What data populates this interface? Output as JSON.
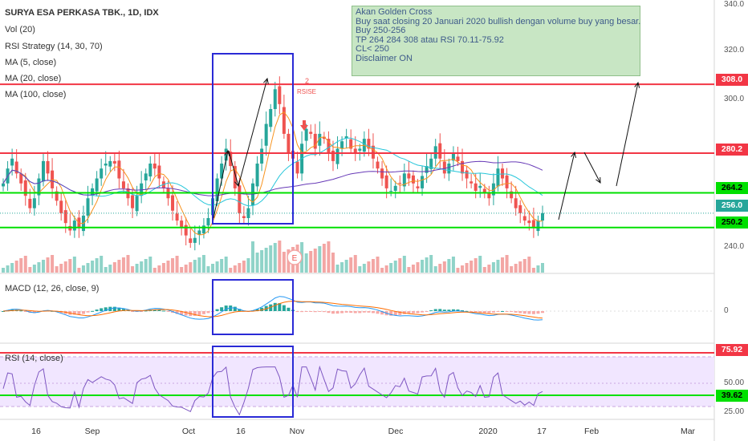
{
  "header": {
    "title": "SURYA ESA PERKASA TBK., 1D, IDX",
    "indicators": [
      "Vol (20)",
      "RSI Strategy (14, 30, 70)",
      "MA (5, close)",
      "MA (20, close)",
      "MA (100, close)"
    ]
  },
  "note": {
    "lines": [
      "Akan Golden Cross",
      "Buy saat closing 20 Januari 2020 bullish dengan volume buy yang besar.",
      "Buy 250-256",
      "TP 264 284 308 atau RSI 70.11-75.92",
      "CL< 250",
      "Disclaimer ON"
    ]
  },
  "price_axis": {
    "ticks": [
      "340.0",
      "320.0",
      "300.0",
      "240.0"
    ]
  },
  "price_badges": [
    {
      "label": "308.0",
      "color": "#f23645"
    },
    {
      "label": "280.2",
      "color": "#f23645"
    },
    {
      "label": "264.2",
      "color": "#00e000"
    },
    {
      "label": "256.0",
      "color": "#26a69a"
    },
    {
      "label": "250.2",
      "color": "#00e000"
    }
  ],
  "macd": {
    "label": "MACD (12, 26, close, 9)",
    "zero_tick": "0"
  },
  "rsi": {
    "label": "RSI (14, close)",
    "ticks": [
      "50.00",
      "25.00"
    ],
    "badges": [
      {
        "label": "75.92",
        "color": "#f23645"
      },
      {
        "label": "39.62",
        "color": "#00e000"
      }
    ]
  },
  "time_axis": {
    "labels": [
      "16",
      "Sep",
      "Oct",
      "16",
      "Nov",
      "Dec",
      "2020",
      "17",
      "Feb",
      "Mar"
    ]
  },
  "markers": {
    "earnings": "E",
    "signal_count": "2",
    "signal_text": "RSISE"
  },
  "chart_data": {
    "type": "candlestick",
    "title": "SURYA ESA PERKASA TBK., 1D, IDX",
    "ylim": [
      232,
      342
    ],
    "horizontal_levels": [
      {
        "value": 308,
        "color": "#f23645"
      },
      {
        "value": 280.2,
        "color": "#f23645"
      },
      {
        "value": 264.2,
        "color": "#00e000"
      },
      {
        "value": 250.2,
        "color": "#00e000"
      }
    ],
    "last_close": 256,
    "rsi_levels": [
      75.92,
      39.62
    ],
    "close_series_approx": [
      268,
      274,
      278,
      272,
      268,
      263,
      258,
      262,
      270,
      277,
      272,
      266,
      261,
      256,
      252,
      249,
      253,
      250,
      255,
      262,
      266,
      270,
      274,
      276,
      277,
      276,
      270,
      266,
      262,
      258,
      263,
      268,
      272,
      276,
      274,
      270,
      266,
      262,
      257,
      253,
      250,
      247,
      244,
      246,
      249,
      251,
      254,
      262,
      270,
      276,
      282,
      275,
      266,
      256,
      254,
      258,
      268,
      276,
      282,
      292,
      298,
      306,
      300,
      288,
      280,
      278,
      272,
      284,
      290,
      288,
      282,
      288,
      286,
      280,
      277,
      282,
      285,
      287,
      282,
      280,
      282,
      286,
      282,
      278,
      274,
      270,
      266,
      265,
      267,
      268,
      272,
      270,
      268,
      266,
      271,
      275,
      278,
      283,
      278,
      272,
      276,
      280,
      277,
      272,
      270,
      268,
      265,
      267,
      264,
      262,
      268,
      274,
      270,
      266,
      262,
      258,
      256,
      253,
      252,
      250,
      253,
      256
    ]
  }
}
